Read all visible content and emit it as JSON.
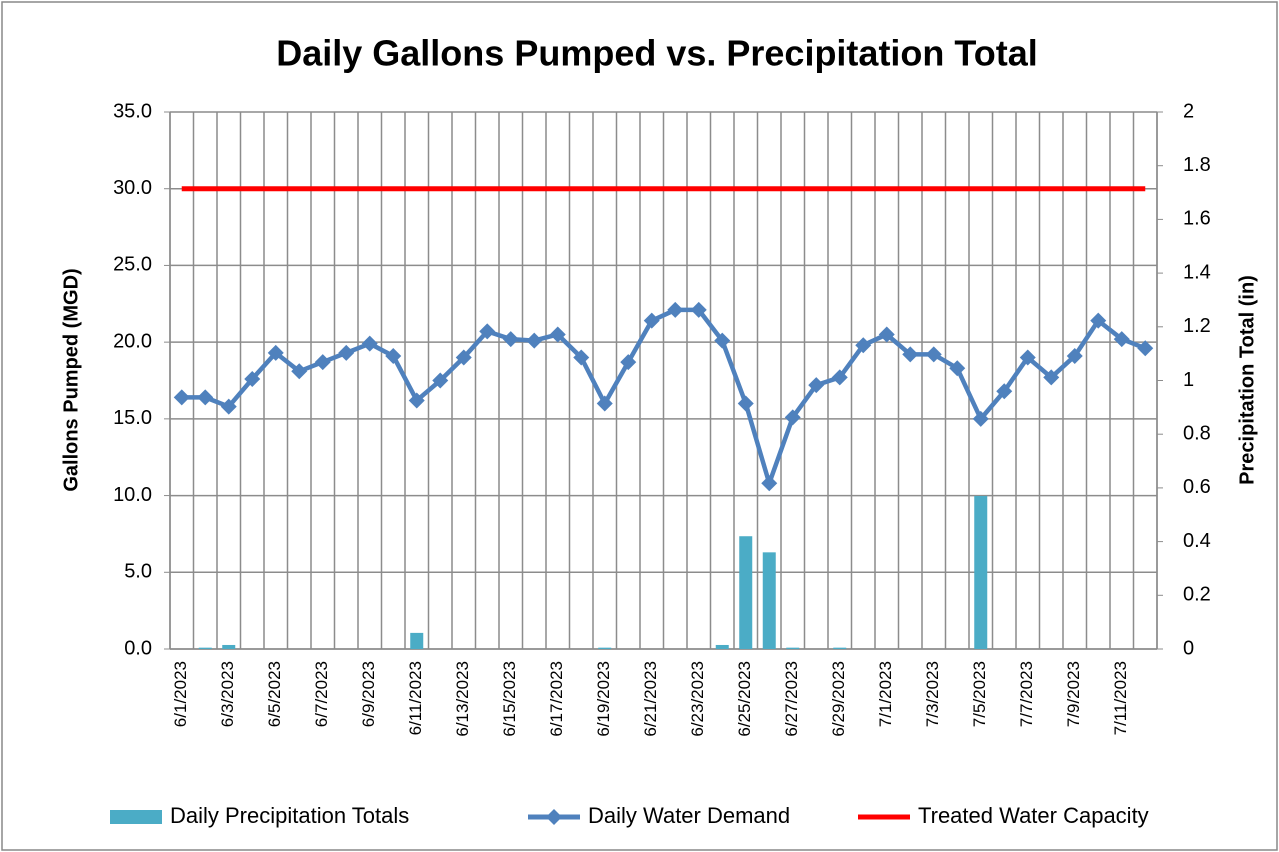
{
  "chart_data": {
    "type": "combo",
    "title": "Daily Gallons Pumped vs. Precipitation Total",
    "ylabel": "Gallons Pumped (MGD)",
    "y2label": "Precipitation Total (in)",
    "categories": [
      "6/1/2023",
      null,
      "6/3/2023",
      null,
      "6/5/2023",
      null,
      "6/7/2023",
      null,
      "6/9/2023",
      null,
      "6/11/2023",
      null,
      "6/13/2023",
      null,
      "6/15/2023",
      null,
      "6/17/2023",
      null,
      "6/19/2023",
      null,
      "6/21/2023",
      null,
      "6/23/2023",
      null,
      "6/25/2023",
      null,
      "6/27/2023",
      null,
      "6/29/2023",
      null,
      "7/1/2023",
      null,
      "7/3/2023",
      null,
      "7/5/2023",
      null,
      "7/7/2023",
      null,
      "7/9/2023",
      null,
      "7/11/2023",
      null
    ],
    "series": [
      {
        "name": "Daily Precipitation Totals",
        "type": "bar",
        "axis": "y2",
        "color": "#4bacc6",
        "values": [
          0,
          0.005,
          0.015,
          0,
          0,
          0,
          0,
          0,
          0,
          0,
          0.06,
          0,
          0,
          0,
          0,
          0,
          0,
          0,
          0.005,
          0,
          0,
          0,
          0,
          0.015,
          0.42,
          0.36,
          0.005,
          0,
          0.005,
          0,
          0,
          0,
          0,
          0,
          0.57,
          0,
          0,
          0,
          0,
          0,
          0,
          0
        ]
      },
      {
        "name": "Daily Water Demand",
        "type": "line",
        "axis": "y",
        "color": "#4f81bd",
        "values": [
          16.4,
          16.4,
          15.8,
          17.6,
          19.3,
          18.1,
          18.7,
          19.3,
          19.9,
          19.1,
          16.2,
          17.5,
          19.0,
          20.7,
          20.2,
          20.1,
          20.5,
          19.0,
          16.0,
          18.7,
          21.4,
          22.1,
          22.1,
          20.1,
          16.0,
          10.8,
          15.1,
          17.2,
          17.7,
          19.8,
          20.5,
          19.2,
          19.2,
          18.3,
          15.0,
          16.8,
          19.0,
          17.7,
          19.1,
          21.4,
          20.2,
          19.6
        ]
      },
      {
        "name": "Treated Water Capacity",
        "type": "line",
        "axis": "y",
        "color": "#ff0000",
        "markers": false,
        "values": [
          30,
          30,
          30,
          30,
          30,
          30,
          30,
          30,
          30,
          30,
          30,
          30,
          30,
          30,
          30,
          30,
          30,
          30,
          30,
          30,
          30,
          30,
          30,
          30,
          30,
          30,
          30,
          30,
          30,
          30,
          30,
          30,
          30,
          30,
          30,
          30,
          30,
          30,
          30,
          30,
          30,
          30
        ]
      }
    ],
    "ylim": [
      0,
      35
    ],
    "yticks": [
      {
        "value": 0,
        "label": "0.0"
      },
      {
        "value": 5,
        "label": "5.0"
      },
      {
        "value": 10,
        "label": "10.0"
      },
      {
        "value": 15,
        "label": "15.0"
      },
      {
        "value": 20,
        "label": "20.0"
      },
      {
        "value": 25,
        "label": "25.0"
      },
      {
        "value": 30,
        "label": "30.0"
      },
      {
        "value": 35,
        "label": "35.0"
      }
    ],
    "y2lim": [
      0,
      2
    ],
    "y2ticks": [
      0,
      0.2,
      0.4,
      0.6,
      0.8,
      1,
      1.2,
      1.4,
      1.6,
      1.8,
      2
    ],
    "grid": true,
    "legend": "bottom"
  }
}
